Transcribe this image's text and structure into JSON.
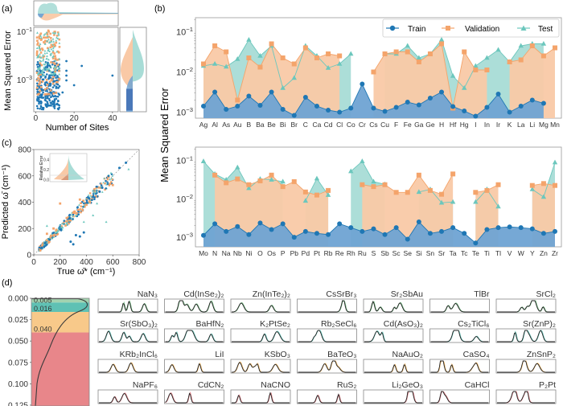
{
  "colors": {
    "train": "#1f77b4",
    "train_fill": "#6fa3d3",
    "validation": "#f4a46b",
    "validation_fill": "#f9c9a6",
    "test": "#6cc7bd",
    "test_fill": "#a8dcd6",
    "frame": "#888888",
    "dos_true": "#222222",
    "bin_green": "#a3d3b0",
    "bin_teal": "#5fc1b4",
    "bin_orange": "#f8c98a",
    "bin_red": "#e8868a"
  },
  "panel_labels": {
    "a": "(a)",
    "b": "(b)",
    "c": "(c)",
    "d": "(d)"
  },
  "chart_data": [
    {
      "id": "a",
      "type": "scatter",
      "title": "",
      "xlabel": "Number of Sites",
      "ylabel": "Mean Squared Error",
      "xticks": [
        "0",
        "20",
        "40"
      ],
      "xtick_values": [
        0,
        20,
        40
      ],
      "yticks": [
        "10⁻¹",
        "10⁻³"
      ],
      "ytick_values": [
        -1,
        -3
      ],
      "xlim": [
        -1,
        43
      ],
      "ylim_log10": [
        -4.3,
        -0.8
      ],
      "note": "Dense scatter of MSE vs. number of sites; train points (blue) mostly at low MSE, validation (orange) and test (teal) higher. Marginal distributions above (x) and right (y, split violin).",
      "outliers": [
        {
          "series": "Train",
          "x": 16,
          "y_log10": -2.2
        },
        {
          "series": "Train",
          "x": 16,
          "y_log10": -2.6
        },
        {
          "series": "Train",
          "x": 16,
          "y_log10": -2.8
        },
        {
          "series": "Train",
          "x": 16,
          "y_log10": -3.0
        },
        {
          "series": "Train",
          "x": 20,
          "y_log10": -3.2
        },
        {
          "series": "Train",
          "x": 24,
          "y_log10": -2.4
        },
        {
          "series": "Train",
          "x": 40,
          "y_log10": -2.8
        },
        {
          "series": "Train",
          "x": 14,
          "y_log10": -3.5
        }
      ]
    },
    {
      "id": "b-top",
      "type": "line",
      "ylabel": "Mean Squared Error",
      "yscale": "log",
      "yticks": [
        "10⁻¹",
        "10⁻²",
        "10⁻³"
      ],
      "ytick_values": [
        -1,
        -2,
        -3
      ],
      "ylim_log10": [
        -3.15,
        -0.65
      ],
      "legend": [
        "Train",
        "Validation",
        "Test"
      ],
      "legend_position": "top-right",
      "categories": [
        "Ag",
        "Al",
        "As",
        "Au",
        "B",
        "Ba",
        "Be",
        "Bi",
        "Br",
        "C",
        "Ca",
        "Cd",
        "Cl",
        "Co",
        "Cr",
        "Cs",
        "Cu",
        "F",
        "Fe",
        "Ga",
        "Ge",
        "H",
        "Hf",
        "Hg",
        "I",
        "In",
        "Ir",
        "K",
        "La",
        "Li",
        "Mg",
        "Mn"
      ],
      "series": [
        {
          "name": "Train",
          "log10_values": [
            -2.85,
            -2.5,
            -2.93,
            -2.85,
            -2.6,
            -2.83,
            -2.5,
            -2.93,
            -3.08,
            -2.63,
            -2.85,
            -2.95,
            -3.0,
            -2.9,
            -2.3,
            -2.9,
            -2.98,
            -2.88,
            -2.75,
            -2.82,
            -2.65,
            -2.5,
            -2.86,
            -2.97,
            -3.1,
            -2.88,
            -2.55,
            -3.0,
            -2.85,
            -2.7,
            -2.78,
            null
          ]
        },
        {
          "name": "Validation",
          "log10_values": [
            -1.8,
            -1.35,
            -1.5,
            -2.7,
            -1.65,
            -1.88,
            -1.3,
            -1.65,
            -1.8,
            -1.4,
            -1.65,
            -1.55,
            -1.6,
            null,
            null,
            -2.0,
            -1.55,
            -1.5,
            -1.5,
            -1.75,
            -1.55,
            -1.3,
            -2.9,
            -1.5,
            -1.95,
            -1.95,
            null,
            -1.75,
            -1.7,
            -1.35,
            -1.6,
            -1.4
          ]
        },
        {
          "name": "Test",
          "log10_values": [
            -1.85,
            -1.8,
            -1.87,
            -1.68,
            -1.2,
            -1.6,
            -1.35,
            -2.4,
            -2.15,
            -1.35,
            -1.6,
            -1.9,
            -1.8,
            -1.55,
            null,
            null,
            -1.55,
            -1.55,
            -1.35,
            -1.65,
            -1.55,
            -1.2,
            -2.1,
            -2.4,
            -1.85,
            -1.65,
            -1.45,
            -1.75,
            -1.35,
            -1.3,
            -1.3,
            null
          ]
        }
      ]
    },
    {
      "id": "b-bottom",
      "type": "line",
      "ylabel": "Mean Squared Error",
      "yscale": "log",
      "yticks": [
        "10⁻¹",
        "10⁻²",
        "10⁻³"
      ],
      "ytick_values": [
        -1,
        -2,
        -3
      ],
      "ylim_log10": [
        -3.25,
        -0.65
      ],
      "categories": [
        "Mo",
        "N",
        "Na",
        "Nb",
        "Ni",
        "O",
        "Os",
        "P",
        "Pb",
        "Pd",
        "Pt",
        "Rb",
        "Re",
        "Rh",
        "Ru",
        "S",
        "Sb",
        "Sc",
        "Se",
        "Si",
        "Sn",
        "Sr",
        "Ta",
        "Tc",
        "Te",
        "Ti",
        "Tl",
        "V",
        "W",
        "Y",
        "Zn",
        "Zr"
      ],
      "series": [
        {
          "name": "Train",
          "log10_values": [
            -2.95,
            -2.65,
            -2.85,
            -2.72,
            -2.93,
            -2.63,
            -2.8,
            -2.65,
            -3.0,
            -2.85,
            -2.9,
            -2.93,
            -2.65,
            -2.75,
            -2.85,
            -2.78,
            -2.93,
            -2.75,
            -3.05,
            -2.6,
            -2.9,
            -2.85,
            -2.75,
            -2.9,
            -3.15,
            -2.8,
            -2.75,
            -2.73,
            -2.75,
            -2.78,
            -2.9,
            -2.85
          ]
        },
        {
          "name": "Validation",
          "log10_values": [
            null,
            -1.38,
            -1.58,
            -1.48,
            -1.63,
            -1.53,
            -1.38,
            -1.68,
            -1.55,
            -1.82,
            -1.9,
            -1.78,
            null,
            null,
            -1.63,
            -1.68,
            -1.63,
            -1.83,
            -1.83,
            -1.38,
            -1.78,
            -1.88,
            -1.35,
            null,
            -1.83,
            -1.78,
            -1.63,
            null,
            null,
            -1.65,
            -1.6,
            -1.65
          ]
        },
        {
          "name": "Test",
          "log10_values": [
            -1.02,
            -1.35,
            -1.5,
            -1.18,
            -1.72,
            -1.48,
            -1.5,
            -1.55,
            null,
            -2.05,
            -1.47,
            -1.9,
            null,
            -1.28,
            -1.02,
            -1.55,
            -1.62,
            null,
            null,
            -1.82,
            -1.75,
            -2.1,
            -2.08,
            null,
            -2.08,
            -1.75,
            -2.2,
            null,
            null,
            -1.75,
            -1.95,
            -1.05
          ]
        }
      ]
    },
    {
      "id": "c",
      "type": "scatter",
      "xlabel": "True ω̄* (cm⁻¹)",
      "ylabel": "Predicted ω̄ (cm⁻¹)",
      "xticks": [
        "0",
        "200",
        "400",
        "600",
        "800"
      ],
      "xtick_values": [
        0,
        200,
        400,
        600,
        800
      ],
      "yticks": [
        "0",
        "200",
        "400",
        "600",
        "800"
      ],
      "ytick_values": [
        0,
        200,
        400,
        600,
        800
      ],
      "xlim": [
        0,
        800
      ],
      "ylim": [
        0,
        800
      ],
      "note": "Predicted vs true average phonon frequency with y=x dashed diagonal; points cluster around the diagonal.",
      "points": [
        {
          "series": "Train",
          "x": 60,
          "y": 55
        },
        {
          "series": "Train",
          "x": 120,
          "y": 115
        },
        {
          "series": "Train",
          "x": 200,
          "y": 195
        },
        {
          "series": "Train",
          "x": 280,
          "y": 100
        },
        {
          "series": "Train",
          "x": 300,
          "y": 80
        },
        {
          "series": "Train",
          "x": 320,
          "y": 150
        },
        {
          "series": "Train",
          "x": 350,
          "y": 140
        },
        {
          "series": "Train",
          "x": 380,
          "y": 170
        },
        {
          "series": "Train",
          "x": 420,
          "y": 430
        },
        {
          "series": "Train",
          "x": 450,
          "y": 440
        },
        {
          "series": "Train",
          "x": 500,
          "y": 480
        },
        {
          "series": "Train",
          "x": 520,
          "y": 510
        },
        {
          "series": "Train",
          "x": 650,
          "y": 660
        },
        {
          "series": "Train",
          "x": 700,
          "y": 700
        },
        {
          "series": "Train",
          "x": 400,
          "y": 390
        },
        {
          "series": "Validation",
          "x": 150,
          "y": 200
        },
        {
          "series": "Validation",
          "x": 250,
          "y": 280
        },
        {
          "series": "Validation",
          "x": 300,
          "y": 320
        },
        {
          "series": "Validation",
          "x": 200,
          "y": 390
        },
        {
          "series": "Validation",
          "x": 350,
          "y": 420
        },
        {
          "series": "Validation",
          "x": 600,
          "y": 530
        },
        {
          "series": "Validation",
          "x": 580,
          "y": 540
        },
        {
          "series": "Validation",
          "x": 100,
          "y": 160
        },
        {
          "series": "Validation",
          "x": 400,
          "y": 380
        },
        {
          "series": "Test",
          "x": 100,
          "y": 220
        },
        {
          "series": "Test",
          "x": 380,
          "y": 250
        },
        {
          "series": "Test",
          "x": 450,
          "y": 300
        },
        {
          "series": "Test",
          "x": 550,
          "y": 250
        },
        {
          "series": "Test",
          "x": 480,
          "y": 390
        },
        {
          "series": "Test",
          "x": 720,
          "y": 650
        },
        {
          "series": "Test",
          "x": 180,
          "y": 180
        },
        {
          "series": "Test",
          "x": 250,
          "y": 240
        },
        {
          "series": "Test",
          "x": 320,
          "y": 300
        }
      ],
      "inset": {
        "ylabel": "Relative Error",
        "yticks": [
          "0.0",
          "0.2",
          "0.4"
        ],
        "ytick_values": [
          0.0,
          0.2,
          0.4
        ],
        "type": "violin"
      }
    },
    {
      "id": "d",
      "type": "area",
      "note": "Error distribution (density curve) with colored quantile bins and threshold labels.",
      "yticks": [
        "0.000",
        "0.025",
        "0.050",
        "0.075",
        "0.100",
        "0.125"
      ],
      "ytick_values": [
        0.0,
        0.025,
        0.05,
        0.075,
        0.1,
        0.125
      ],
      "ylim": [
        0.0,
        0.126
      ],
      "thresholds": [
        {
          "label": "0.005",
          "value": 0.005
        },
        {
          "label": "0.016",
          "value": 0.016
        },
        {
          "label": "0.040",
          "value": 0.04
        }
      ]
    }
  ],
  "dos_grid": {
    "rows": [
      {
        "bin": "green",
        "items": [
          "NaN₃",
          "Cd(InSe₂)₂",
          "Zn(InTe₂)₂",
          "CsSrBr₃",
          "Sr₂SbAu",
          "TlBr",
          "SrCl₂"
        ]
      },
      {
        "bin": "teal",
        "items": [
          "Sr(SbO₃)₂",
          "BaHfN₂",
          "K₂PtSe₂",
          "Rb₂SeCl₆",
          "Cd(AsO₃)₂",
          "Cs₂TiCl₆",
          "Sr(ZnP)₂"
        ]
      },
      {
        "bin": "orange",
        "items": [
          "KRb₂InCl₆",
          "LiI",
          "KSbO₃",
          "BaTeO₃",
          "NaAuO₂",
          "CaSO₄",
          "ZnSnP₂"
        ]
      },
      {
        "bin": "red",
        "items": [
          "NaPF₆",
          "CdCN₂",
          "NaCNO",
          "RuS₂",
          "Li₂GeO₃",
          "CaHCl",
          "P₂Pt"
        ]
      }
    ]
  }
}
